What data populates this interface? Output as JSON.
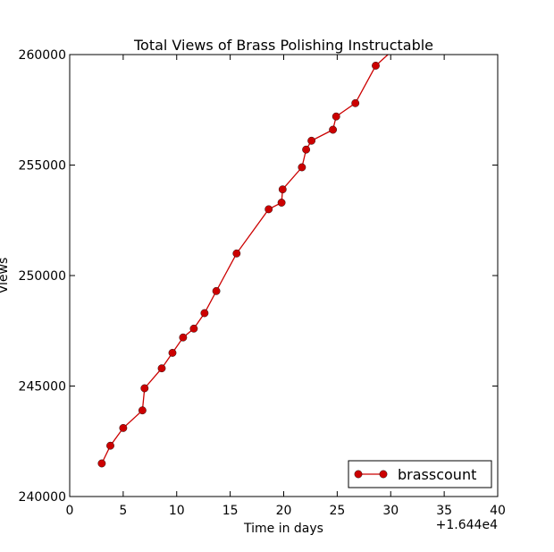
{
  "chart_data": {
    "type": "line",
    "title": "Total Views of Brass Polishing Instructable",
    "xlabel": "Time in days",
    "ylabel": "Views",
    "x_offset_label": "+1.644e4",
    "xlim": [
      0,
      40
    ],
    "ylim": [
      240000,
      260000
    ],
    "x_ticks": [
      "0",
      "5",
      "10",
      "15",
      "20",
      "25",
      "30",
      "35",
      "40"
    ],
    "y_ticks": [
      "240000",
      "245000",
      "250000",
      "255000",
      "260000"
    ],
    "grid": false,
    "legend_position": "lower-right",
    "series": [
      {
        "name": "brasscount",
        "color": "#cc0000",
        "marker": "circle",
        "x": [
          3.0,
          3.8,
          5.0,
          6.8,
          7.0,
          8.6,
          9.6,
          10.6,
          11.6,
          12.6,
          13.7,
          15.6,
          18.6,
          19.8,
          19.9,
          21.7,
          22.1,
          22.6,
          24.6,
          24.9,
          26.7,
          28.6,
          30.2
        ],
        "y": [
          241500,
          242300,
          243100,
          243900,
          244900,
          245800,
          246500,
          247200,
          247600,
          248300,
          249300,
          251000,
          253000,
          253300,
          253900,
          254900,
          255700,
          256100,
          256600,
          257200,
          257800,
          259500,
          260200
        ]
      }
    ]
  }
}
